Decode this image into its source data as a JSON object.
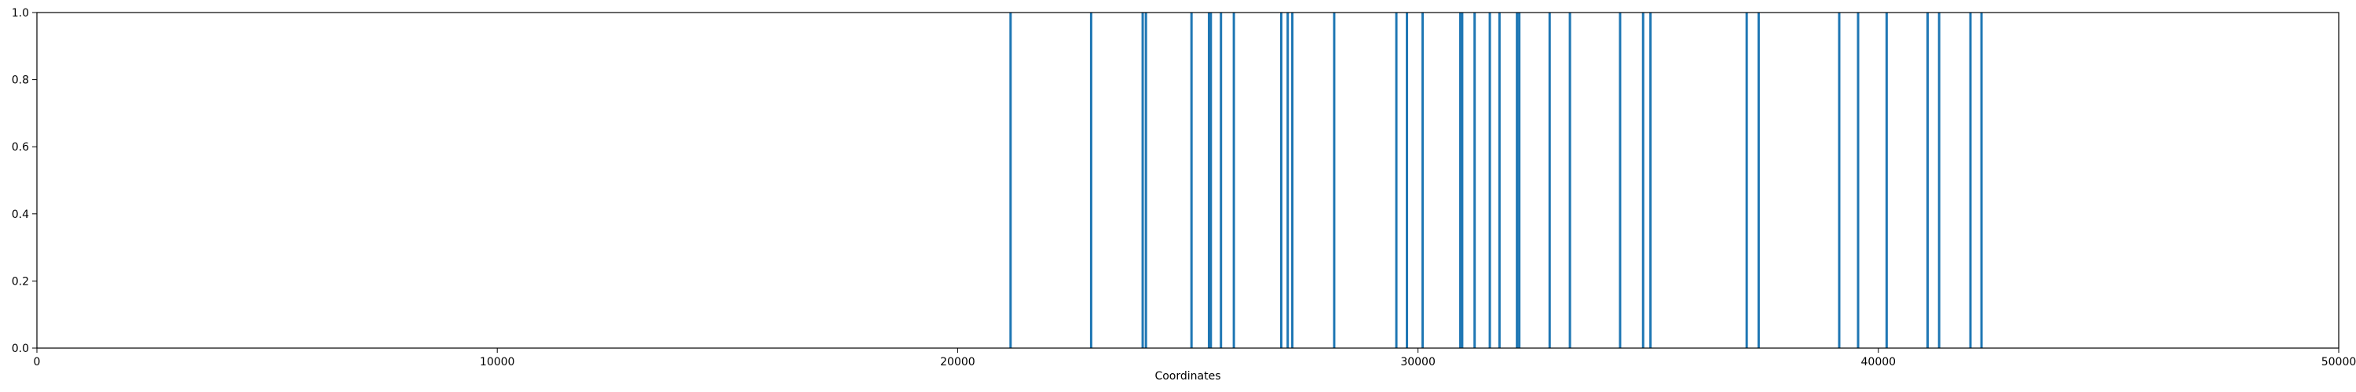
{
  "chart_data": {
    "type": "bar",
    "title": "",
    "xlabel": "Coordinates",
    "ylabel": "",
    "xlim": [
      0,
      50000
    ],
    "ylim": [
      0.0,
      1.0
    ],
    "grid": false,
    "legend": "none",
    "color": "#1f77b4",
    "x_ticks": [
      {
        "value": 0,
        "label": "0"
      },
      {
        "value": 10000,
        "label": "10000"
      },
      {
        "value": 20000,
        "label": "20000"
      },
      {
        "value": 30000,
        "label": "30000"
      },
      {
        "value": 40000,
        "label": "40000"
      },
      {
        "value": 50000,
        "label": "50000"
      }
    ],
    "y_ticks": [
      {
        "value": 0.0,
        "label": "0.0"
      },
      {
        "value": 0.2,
        "label": "0.2"
      },
      {
        "value": 0.4,
        "label": "0.4"
      },
      {
        "value": 0.6,
        "label": "0.6"
      },
      {
        "value": 0.8,
        "label": "0.8"
      },
      {
        "value": 1.0,
        "label": "1.0"
      }
    ],
    "x": [
      21150,
      22900,
      24020,
      24090,
      25080,
      25460,
      25500,
      25720,
      26000,
      27030,
      27170,
      27270,
      28180,
      29530,
      29760,
      30100,
      30920,
      30960,
      31230,
      31560,
      31770,
      32150,
      32200,
      32860,
      33300,
      34390,
      34890,
      35050,
      37140,
      37400,
      39150,
      39560,
      40180,
      41070,
      41320,
      42000,
      42240
    ],
    "values": [
      1,
      1,
      1,
      1,
      1,
      1,
      1,
      1,
      1,
      1,
      1,
      1,
      1,
      1,
      1,
      1,
      1,
      1,
      1,
      1,
      1,
      1,
      1,
      1,
      1,
      1,
      1,
      1,
      1,
      1,
      1,
      1,
      1,
      1,
      1,
      1,
      1
    ]
  }
}
